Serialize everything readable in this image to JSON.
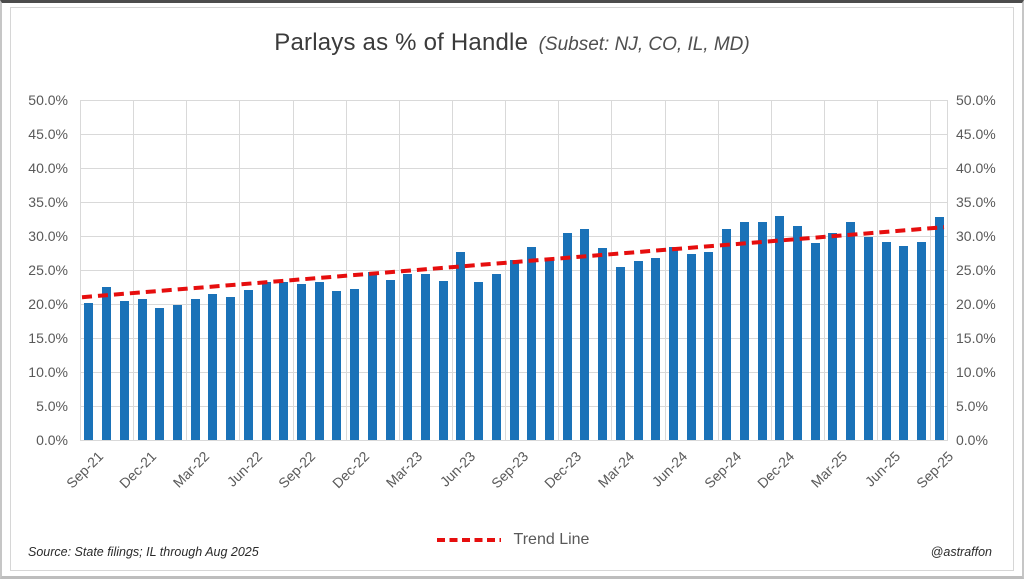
{
  "title": {
    "main": "Parlays as % of Handle",
    "subset": "(Subset: NJ, CO, IL, MD)"
  },
  "legend": {
    "trend_label": "Trend Line"
  },
  "footer": {
    "source": "Source: State filings; IL through Aug 2025",
    "handle": "@astraffon"
  },
  "colors": {
    "bar": "#1a72b8",
    "trend": "#e60e0e",
    "grid": "#d9d9d9",
    "axis_text": "#595959"
  },
  "chart_data": {
    "type": "bar",
    "title": "Parlays as % of Handle (Subset: NJ, CO, IL, MD)",
    "xlabel": "",
    "ylabel": "",
    "ylim": [
      0,
      50
    ],
    "y_tick_step": 5,
    "y_tick_labels": [
      "0.0%",
      "5.0%",
      "10.0%",
      "15.0%",
      "20.0%",
      "25.0%",
      "30.0%",
      "35.0%",
      "40.0%",
      "45.0%",
      "50.0%"
    ],
    "grid": true,
    "legend_position": "bottom",
    "categories": [
      "Sep-21",
      "Oct-21",
      "Nov-21",
      "Dec-21",
      "Jan-22",
      "Feb-22",
      "Mar-22",
      "Apr-22",
      "May-22",
      "Jun-22",
      "Jul-22",
      "Aug-22",
      "Sep-22",
      "Oct-22",
      "Nov-22",
      "Dec-22",
      "Jan-23",
      "Feb-23",
      "Mar-23",
      "Apr-23",
      "May-23",
      "Jun-23",
      "Jul-23",
      "Aug-23",
      "Sep-23",
      "Oct-23",
      "Nov-23",
      "Dec-23",
      "Jan-24",
      "Feb-24",
      "Mar-24",
      "Apr-24",
      "May-24",
      "Jun-24",
      "Jul-24",
      "Aug-24",
      "Sep-24",
      "Oct-24",
      "Nov-24",
      "Dec-24",
      "Jan-25",
      "Feb-25",
      "Mar-25",
      "Apr-25",
      "May-25",
      "Jun-25",
      "Jul-25",
      "Aug-25",
      "Sep-25"
    ],
    "values": [
      20.1,
      22.5,
      20.5,
      20.7,
      19.4,
      19.8,
      20.8,
      21.4,
      21.0,
      22.0,
      23.3,
      23.2,
      23.0,
      23.3,
      21.9,
      22.2,
      24.7,
      23.6,
      24.4,
      24.4,
      23.4,
      27.6,
      23.3,
      24.4,
      26.4,
      28.4,
      26.7,
      30.5,
      31.0,
      28.2,
      25.4,
      26.3,
      26.7,
      28.4,
      27.3,
      27.7,
      31.1,
      32.1,
      32.0,
      33.0,
      31.5,
      29.0,
      30.4,
      32.0,
      29.9,
      29.1,
      28.6,
      29.1,
      32.8
    ],
    "x_tick_labels": [
      "Sep-21",
      "Dec-21",
      "Mar-22",
      "Jun-22",
      "Sep-22",
      "Dec-22",
      "Mar-23",
      "Jun-23",
      "Sep-23",
      "Dec-23",
      "Mar-24",
      "Jun-24",
      "Sep-24",
      "Dec-24",
      "Mar-25",
      "Jun-25",
      "Sep-25"
    ],
    "x_tick_every": 3,
    "trend_line": {
      "name": "Trend Line",
      "style": "dashed",
      "color": "#e60e0e",
      "start_value": 21.0,
      "end_value": 31.3
    }
  }
}
